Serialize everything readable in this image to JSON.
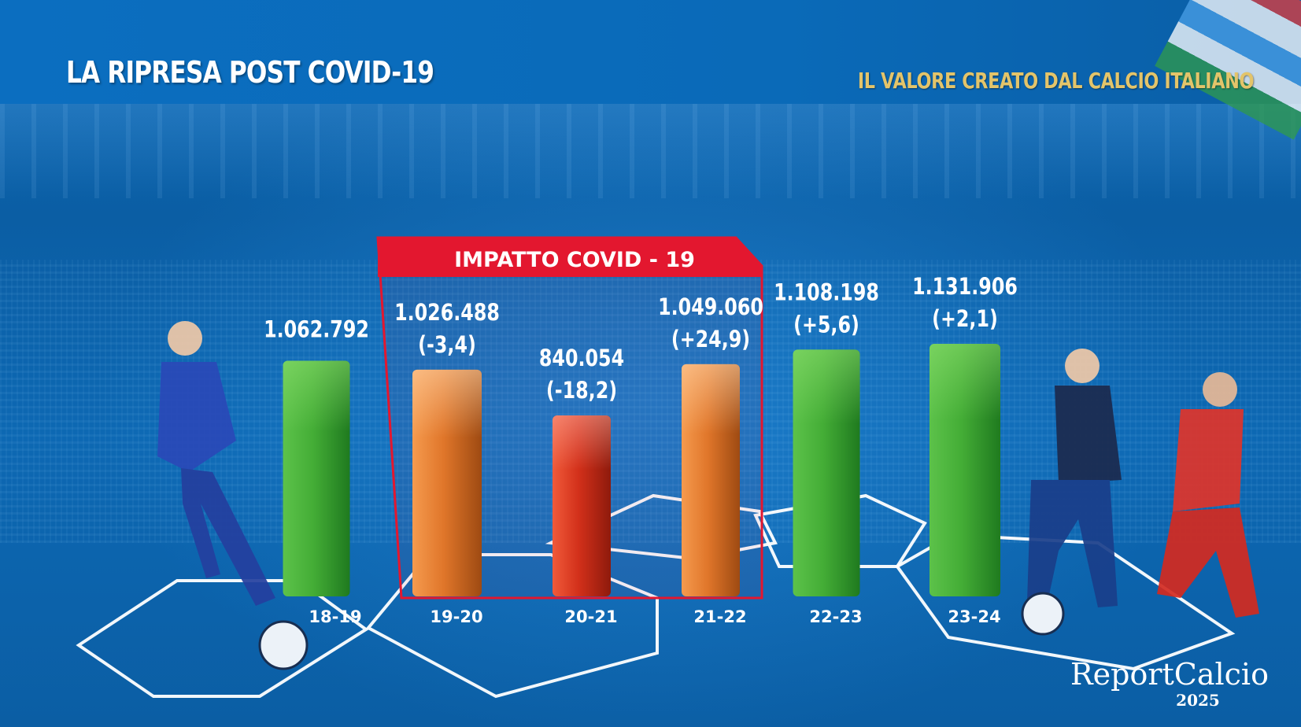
{
  "header": {
    "title": "LA RIPRESA POST COVID-19",
    "subtitle": "IL VALORE CREATO DAL CALCIO ITALIANO"
  },
  "highlight": {
    "label": "IMPATTO COVID - 19",
    "color": "#e3172f"
  },
  "logo": {
    "name": "ReportCalcio",
    "year": "2025"
  },
  "colors": {
    "green": "#3aa532",
    "orange": "#e0762a",
    "red": "#d2301a",
    "subtitle_gold": "#e3c46a"
  },
  "chart_data": {
    "type": "bar",
    "categories": [
      "18-19",
      "19-20",
      "20-21",
      "21-22",
      "22-23",
      "23-24"
    ],
    "values": [
      1062792,
      1026488,
      840054,
      1049060,
      1108198,
      1131906
    ],
    "value_labels": [
      "1.062.792",
      "1.026.488",
      "840.054",
      "1.049.060",
      "1.108.198",
      "1.131.906"
    ],
    "change_labels": [
      "",
      "(-3,4)",
      "(-18,2)",
      "(+24,9)",
      "(+5,6)",
      "(+2,1)"
    ],
    "bar_colors": [
      "green",
      "orange",
      "red",
      "orange",
      "green",
      "green"
    ],
    "highlighted_categories": [
      "19-20",
      "20-21",
      "21-22"
    ],
    "title": "LA RIPRESA POST COVID-19",
    "xlabel": "",
    "ylabel": "",
    "grid": false,
    "legend": "none"
  }
}
